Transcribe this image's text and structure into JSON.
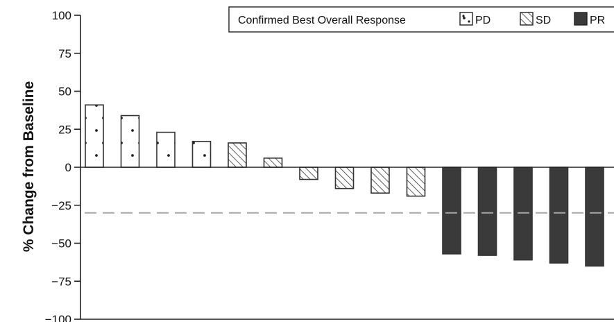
{
  "chart_data": {
    "type": "bar",
    "ylabel": "% Change from Baseline",
    "ylim": [
      -100,
      100
    ],
    "yticks": [
      100,
      75,
      50,
      25,
      0,
      -25,
      -50,
      -75,
      -100
    ],
    "ytick_labels": [
      "100",
      "75",
      "50",
      "25",
      "0",
      "−25",
      "−50",
      "−75",
      "−100"
    ],
    "reference_line": {
      "value": -30,
      "style": "dashed",
      "color": "#a6a6a6"
    },
    "legend": {
      "title": "Confirmed Best Overall Response",
      "placement": "top-right",
      "entries": [
        {
          "key": "PD",
          "label": "PD",
          "pattern": "dots"
        },
        {
          "key": "SD",
          "label": "SD",
          "pattern": "hatch"
        },
        {
          "key": "PR",
          "label": "PR",
          "pattern": "solid"
        }
      ]
    },
    "colors": {
      "bar_fill_solid": "#3a3a3a",
      "bar_outline": "#333333",
      "axis": "#222222"
    },
    "bars": [
      {
        "value": 41,
        "response": "PD"
      },
      {
        "value": 34,
        "response": "PD"
      },
      {
        "value": 23,
        "response": "PD"
      },
      {
        "value": 17,
        "response": "PD"
      },
      {
        "value": 16,
        "response": "SD"
      },
      {
        "value": 6,
        "response": "SD"
      },
      {
        "value": -8,
        "response": "SD"
      },
      {
        "value": -14,
        "response": "SD"
      },
      {
        "value": -17,
        "response": "SD"
      },
      {
        "value": -19,
        "response": "SD"
      },
      {
        "value": -57,
        "response": "PR"
      },
      {
        "value": -58,
        "response": "PR"
      },
      {
        "value": -61,
        "response": "PR"
      },
      {
        "value": -63,
        "response": "PR"
      },
      {
        "value": -65,
        "response": "PR"
      }
    ]
  }
}
